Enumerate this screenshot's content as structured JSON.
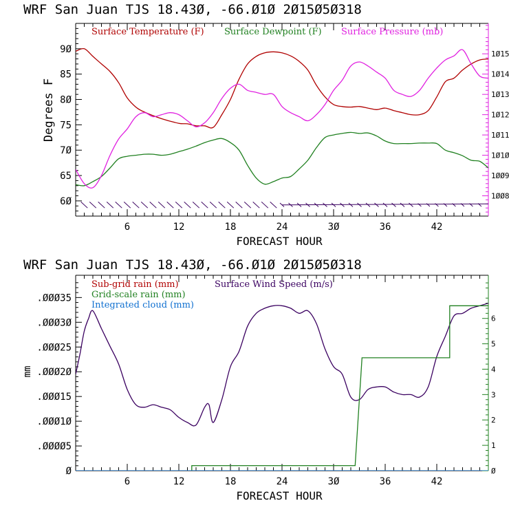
{
  "charts": [
    {
      "type": "line",
      "title": "WRF  San Juan TJS  18.43Ø, -66.Ø1Ø  2Ø15Ø5Ø318",
      "xlabel": "FORECAST HOUR",
      "ylabel": "Degrees F",
      "y2label": "",
      "xlim": [
        0,
        48
      ],
      "ylim": [
        57,
        95
      ],
      "y2lim": [
        1007,
        1016.5
      ],
      "x_ticks": [
        6,
        12,
        18,
        24,
        30,
        36,
        42
      ],
      "x_tick_labels": [
        "6",
        "12",
        "18",
        "24",
        "3Ø",
        "36",
        "42"
      ],
      "y_ticks": [
        60,
        65,
        70,
        75,
        80,
        85,
        90
      ],
      "y_tick_labels": [
        "6Ø",
        "65",
        "7Ø",
        "75",
        "8Ø",
        "85",
        "9Ø"
      ],
      "y2_ticks": [
        1008,
        1009,
        1010,
        1011,
        1012,
        1013,
        1014,
        1015
      ],
      "y2_tick_labels": [
        "1ØØ8",
        "1ØØ9",
        "1Ø1Ø",
        "1Ø11",
        "1Ø12",
        "1Ø13",
        "1Ø14",
        "1Ø15"
      ],
      "legend": [
        "Surface Temperature (F)",
        "Surface Dewpoint (F)",
        "Surface Pressure (mb)"
      ],
      "legend_position": "top",
      "series": [
        {
          "name": "Surface Temperature (F)",
          "axis": "left",
          "color": "#b00000",
          "x": [
            0,
            1,
            2,
            3,
            4,
            5,
            6,
            7,
            8,
            10,
            12,
            13,
            14,
            15,
            16,
            17,
            18,
            19,
            20,
            21,
            22,
            23,
            24,
            25,
            26,
            27,
            28,
            29,
            30,
            31,
            32,
            33,
            34,
            35,
            36,
            37,
            38,
            39,
            40,
            41,
            42,
            43,
            44,
            45,
            46,
            47,
            48
          ],
          "y": [
            89.5,
            90,
            88.5,
            87,
            85.5,
            83.3,
            80.3,
            78.5,
            77.5,
            76.2,
            75.3,
            75.2,
            74.8,
            74.8,
            74.5,
            77,
            80,
            84,
            87,
            88.5,
            89.2,
            89.4,
            89.2,
            88.6,
            87.5,
            85.8,
            82.8,
            80.5,
            79,
            78.6,
            78.5,
            78.6,
            78.3,
            78,
            78.3,
            77.8,
            77.4,
            77,
            77,
            77.8,
            80.5,
            83.5,
            84.2,
            85.8,
            87,
            87.8,
            88
          ]
        },
        {
          "name": "Surface Dewpoint (F)",
          "axis": "left",
          "color": "#208020",
          "x": [
            0,
            1,
            2,
            3,
            4,
            5,
            6,
            7,
            8,
            9,
            10,
            11,
            12,
            13,
            14,
            15,
            16,
            17,
            18,
            19,
            20,
            21,
            22,
            23,
            24,
            25,
            26,
            27,
            28,
            29,
            30,
            31,
            32,
            33,
            34,
            35,
            36,
            37,
            38,
            39,
            40,
            41,
            42,
            43,
            44,
            45,
            46,
            47,
            48
          ],
          "y": [
            63.2,
            63,
            63.8,
            64.8,
            66.5,
            68.3,
            68.8,
            69,
            69.2,
            69.2,
            69,
            69.2,
            69.7,
            70.2,
            70.8,
            71.5,
            72,
            72.3,
            71.5,
            70,
            67,
            64.5,
            63.3,
            63.8,
            64.5,
            64.8,
            66.3,
            68,
            70.5,
            72.5,
            73,
            73.3,
            73.5,
            73.3,
            73.4,
            72.8,
            71.8,
            71.3,
            71.3,
            71.3,
            71.4,
            71.4,
            71.3,
            70,
            69.5,
            68.9,
            68,
            67.8,
            66.5
          ]
        },
        {
          "name": "Surface Pressure (mb)",
          "axis": "right",
          "color": "#e020e0",
          "x": [
            0,
            1,
            2,
            3,
            4,
            5,
            6,
            7,
            8,
            9,
            10,
            11,
            12,
            13,
            14,
            15,
            16,
            17,
            18,
            19,
            20,
            21,
            22,
            23,
            24,
            25,
            26,
            27,
            28,
            29,
            30,
            31,
            32,
            33,
            34,
            35,
            36,
            37,
            38,
            39,
            40,
            41,
            42,
            43,
            44,
            45,
            46,
            47,
            48
          ],
          "y": [
            1009.3,
            1008.6,
            1008.4,
            1009,
            1010,
            1010.8,
            1011.3,
            1011.9,
            1012.1,
            1011.9,
            1012,
            1012.1,
            1012,
            1011.7,
            1011.4,
            1011.6,
            1012.1,
            1012.8,
            1013.3,
            1013.5,
            1013.2,
            1013.1,
            1013,
            1013,
            1012.4,
            1012.1,
            1011.9,
            1011.7,
            1012,
            1012.5,
            1013.2,
            1013.7,
            1014.4,
            1014.6,
            1014.4,
            1014.1,
            1013.8,
            1013.2,
            1013,
            1012.9,
            1013.2,
            1013.8,
            1014.3,
            1014.7,
            1014.9,
            1015.2,
            1014.5,
            1013.9,
            1013.8
          ]
        }
      ],
      "wind_barbs_at": 59.2
    },
    {
      "type": "line",
      "title": "WRF  San Juan TJS  18.43Ø, -66.Ø1Ø  2Ø15Ø5Ø318",
      "xlabel": "FORECAST HOUR",
      "ylabel": "mm",
      "y2label": "",
      "xlim": [
        0,
        48
      ],
      "ylim": [
        0,
        0.000395
      ],
      "y2lim": [
        0,
        7.7
      ],
      "x_ticks": [
        6,
        12,
        18,
        24,
        30,
        36,
        42
      ],
      "x_tick_labels": [
        "6",
        "12",
        "18",
        "24",
        "3Ø",
        "36",
        "42"
      ],
      "y_ticks": [
        0,
        5e-05,
        0.0001,
        0.00015,
        0.0002,
        0.00025,
        0.0003,
        0.00035
      ],
      "y_tick_labels": [
        "Ø",
        ".ØØØØ5",
        ".ØØØ1Ø",
        ".ØØØ15",
        ".ØØØ2Ø",
        ".ØØØ25",
        ".ØØØ3Ø",
        ".ØØØ35"
      ],
      "y2_ticks": [
        0,
        1,
        2,
        3,
        4,
        5,
        6
      ],
      "y2_tick_labels": [
        "Ø",
        "1",
        "2",
        "3",
        "4",
        "5",
        "6"
      ],
      "legend": [
        "Sub-grid rain (mm)",
        "Surface Wind Speed (m/s)",
        "Grid-scale rain (mm)",
        "Integrated cloud (mm)"
      ],
      "legend_position": "top-left",
      "series": [
        {
          "name": "Surface Wind Speed (m/s)",
          "axis": "right",
          "color": "#3a0060",
          "x": [
            0,
            0.5,
            1,
            1.5,
            2,
            3,
            4,
            5,
            6,
            7,
            8,
            9,
            10,
            11,
            12,
            13,
            14,
            15,
            15.5,
            16,
            17,
            18,
            19,
            20,
            21,
            22,
            23,
            24,
            25,
            26,
            27,
            28,
            29,
            30,
            31,
            32,
            33,
            34,
            35,
            36,
            37,
            38,
            39,
            40,
            41,
            42,
            43,
            44,
            45,
            46,
            47,
            48
          ],
          "y": [
            3.8,
            4.6,
            5.5,
            6.0,
            6.3,
            5.6,
            4.9,
            4.2,
            3.2,
            2.6,
            2.5,
            2.6,
            2.5,
            2.4,
            2.1,
            1.9,
            1.8,
            2.5,
            2.6,
            1.9,
            2.8,
            4.1,
            4.7,
            5.7,
            6.2,
            6.4,
            6.5,
            6.5,
            6.4,
            6.2,
            6.3,
            5.8,
            4.8,
            4.1,
            3.8,
            2.9,
            2.8,
            3.2,
            3.3,
            3.3,
            3.1,
            3.0,
            3.0,
            2.9,
            3.3,
            4.5,
            5.3,
            6.1,
            6.2,
            6.4,
            6.5,
            6.6
          ]
        },
        {
          "name": "Grid-scale rain (mm)",
          "axis": "right",
          "color": "#208020",
          "x": [
            13.5,
            13.5,
            32.5,
            33.3,
            43.5,
            43.5,
            48
          ],
          "y": [
            0,
            0.2,
            0.2,
            4.45,
            4.45,
            6.5,
            6.5
          ]
        },
        {
          "name": "Integrated cloud (mm)",
          "axis": "right",
          "color": "#1070d0",
          "x": [
            0,
            48
          ],
          "y": [
            0,
            0
          ]
        }
      ]
    }
  ]
}
